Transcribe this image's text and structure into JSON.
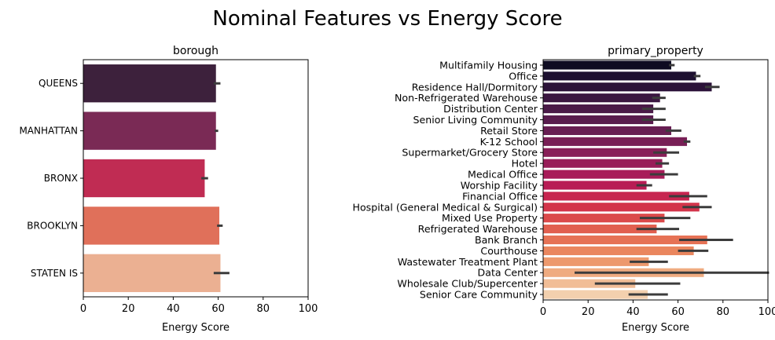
{
  "figure": {
    "suptitle": "Nominal Features vs Energy Score"
  },
  "chart_data": [
    {
      "type": "bar",
      "orientation": "horizontal",
      "title": "borough",
      "xlabel": "Energy Score",
      "ylabel": "",
      "xlim": [
        0,
        100
      ],
      "xticks": [
        0,
        20,
        40,
        60,
        80,
        100
      ],
      "grid": false,
      "legend": "none",
      "categories": [
        "QUEENS",
        "MANHATTAN",
        "BRONX",
        "BROOKLYN",
        "STATEN IS"
      ],
      "values": [
        59,
        59,
        54,
        60.5,
        61
      ],
      "error_bars": [
        [
          58,
          61
        ],
        [
          58.5,
          60
        ],
        [
          52.5,
          55.5
        ],
        [
          59.5,
          62
        ],
        [
          58,
          65
        ]
      ],
      "colors": [
        "#3d213c",
        "#7a2a55",
        "#c02c53",
        "#e0705a",
        "#ebb092"
      ]
    },
    {
      "type": "bar",
      "orientation": "horizontal",
      "title": "primary_property",
      "xlabel": "Energy Score",
      "ylabel": "",
      "xlim": [
        0,
        100
      ],
      "xticks": [
        0,
        20,
        40,
        60,
        80,
        100
      ],
      "grid": false,
      "legend": "none",
      "categories": [
        "Multifamily Housing",
        "Office",
        "Residence Hall/Dormitory",
        "Non-Refrigerated Warehouse",
        "Distribution Center",
        "Senior Living Community",
        "Retail Store",
        "K-12 School",
        "Supermarket/Grocery Store",
        "Hotel",
        "Medical Office",
        "Worship Facility",
        "Financial Office",
        "Hospital (General Medical & Surgical)",
        "Mixed Use Property",
        "Refrigerated Warehouse",
        "Bank Branch",
        "Courthouse",
        "Wastewater Treatment Plant",
        "Data Center",
        "Wholesale Club/Supercenter",
        "Senior Care Community"
      ],
      "values": [
        57,
        68,
        75,
        52,
        49,
        49,
        57,
        64,
        55,
        53,
        54,
        46,
        65,
        69.5,
        54,
        50.5,
        73,
        67,
        47,
        71.5,
        41,
        46.5
      ],
      "error_bars": [
        [
          56,
          58.5
        ],
        [
          67,
          70
        ],
        [
          72,
          78.5
        ],
        [
          48.5,
          54.5
        ],
        [
          44,
          54.5
        ],
        [
          44,
          54.5
        ],
        [
          54.5,
          61.5
        ],
        [
          62.5,
          65.5
        ],
        [
          49,
          60.5
        ],
        [
          50,
          56
        ],
        [
          47.5,
          60
        ],
        [
          41.5,
          48.5
        ],
        [
          56,
          73
        ],
        [
          62,
          75
        ],
        [
          43,
          65.5
        ],
        [
          41.5,
          60.5
        ],
        [
          60.5,
          84.5
        ],
        [
          60,
          73.5
        ],
        [
          38.5,
          55.5
        ],
        [
          14,
          100.5
        ],
        [
          23,
          61
        ],
        [
          38,
          55.5
        ]
      ],
      "colors": [
        "#0e0b21",
        "#1d1030",
        "#2c1339",
        "#3b1741",
        "#4a1a48",
        "#591c4e",
        "#681e53",
        "#781f56",
        "#881f58",
        "#981d59",
        "#a81c59",
        "#b81d55",
        "#c72650",
        "#d3354b",
        "#db4a4b",
        "#e15f4f",
        "#e67255",
        "#ea865e",
        "#ed996d",
        "#efab80",
        "#f1bd96",
        "#f3d0ae"
      ]
    }
  ]
}
